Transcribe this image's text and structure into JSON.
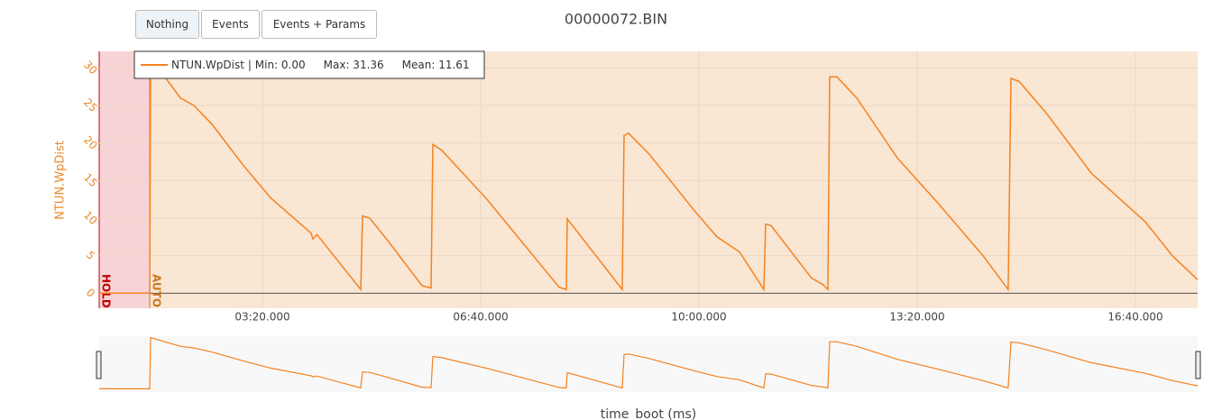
{
  "buttons": [
    "Nothing",
    "Events",
    "Events + Params"
  ],
  "chart_data": {
    "type": "line",
    "title": "00000072.BIN",
    "ylabel": "NTUN.WpDist",
    "xlabel": "time_boot (ms)",
    "xlim": [
      50400,
      1057000
    ],
    "ylim": [
      -2,
      32.2
    ],
    "xticks": [
      {
        "value": 200000,
        "label": "03:20.000"
      },
      {
        "value": 400000,
        "label": "06:40.000"
      },
      {
        "value": 600000,
        "label": "10:00.000"
      },
      {
        "value": 800000,
        "label": "13:20.000"
      },
      {
        "value": 1000000,
        "label": "16:40.000"
      }
    ],
    "yticks": [
      0,
      5,
      10,
      15,
      20,
      25,
      30
    ],
    "grid": true,
    "legend_stats": [
      "| Min: 0.00",
      "Max: 31.36",
      "Mean: 11.61"
    ],
    "modes": [
      {
        "label": "HOLD",
        "start": 50400,
        "color": "#f7d3d6",
        "text_color": "#c00000"
      },
      {
        "label": "AUTO",
        "start": 96700,
        "color": "#f9e6d3",
        "text_color": "#c8781e"
      }
    ],
    "x": [
      50400,
      96700,
      97500,
      124800,
      137200,
      153700,
      182600,
      207400,
      244600,
      246300,
      250000,
      290100,
      291700,
      298300,
      314900,
      346300,
      354500,
      356200,
      364500,
      405800,
      471900,
      478500,
      479300,
      529700,
      531400,
      535500,
      554500,
      595800,
      616500,
      637200,
      659500,
      661100,
      666100,
      703300,
      713200,
      718200,
      719800,
      726400,
      744600,
      781800,
      819000,
      860300,
      883400,
      885900,
      893400,
      918200,
      959500,
      1009100,
      1033900,
      1057000
    ],
    "series": [
      {
        "name": "NTUN.WpDist",
        "color": "#f5821f",
        "values": [
          0,
          0,
          31.36,
          26.0,
          25,
          22.5,
          17,
          12.7,
          8,
          7.2,
          7.8,
          0.5,
          10.3,
          10,
          7,
          1,
          0.7,
          19.8,
          19,
          12.5,
          0.8,
          0.5,
          9.9,
          0.5,
          21,
          21.3,
          18.5,
          11,
          7.5,
          5.5,
          0.5,
          9.2,
          9,
          2,
          1.2,
          0.5,
          28.8,
          28.8,
          26,
          18,
          12,
          5,
          0.5,
          28.6,
          28.2,
          24,
          16,
          9.5,
          5,
          1.8
        ]
      }
    ]
  }
}
